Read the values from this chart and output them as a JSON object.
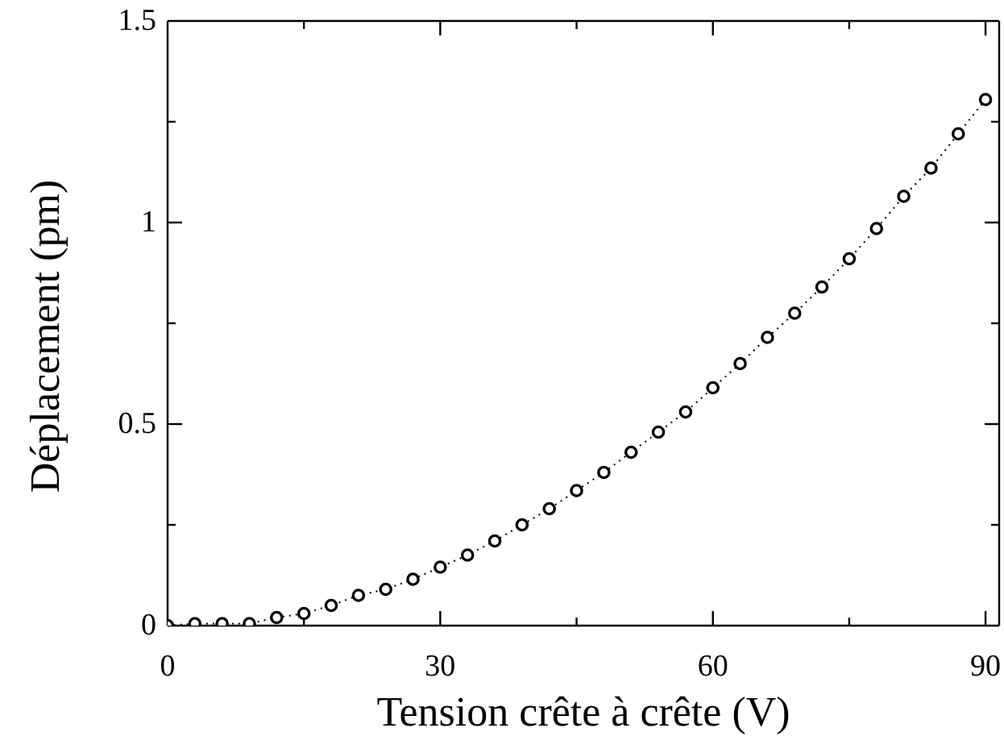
{
  "chart_data": {
    "type": "line",
    "xlabel": "Tension crête à crête (V)",
    "ylabel": "Déplacement (pm)",
    "x": [
      0,
      3,
      6,
      9,
      12,
      15,
      18,
      21,
      24,
      27,
      30,
      33,
      36,
      39,
      42,
      45,
      48,
      51,
      54,
      57,
      60,
      63,
      66,
      69,
      72,
      75,
      78,
      81,
      84,
      87,
      90
    ],
    "series": [
      {
        "color": "#000000",
        "values": [
          0,
          0.005,
          0.005,
          0.005,
          0.02,
          0.03,
          0.05,
          0.075,
          0.09,
          0.115,
          0.145,
          0.175,
          0.21,
          0.25,
          0.29,
          0.335,
          0.38,
          0.43,
          0.48,
          0.53,
          0.59,
          0.65,
          0.715,
          0.775,
          0.84,
          0.91,
          0.985,
          1.065,
          1.135,
          1.22,
          1.305
        ]
      }
    ],
    "xlim": [
      0,
      91.5
    ],
    "ylim": [
      0,
      1.5
    ],
    "xticks": [
      0,
      {
        "value": 15,
        "label": null
      },
      30,
      {
        "value": 45,
        "label": null
      },
      60,
      {
        "value": 75,
        "label": null
      },
      90
    ],
    "yticks": [
      0,
      {
        "value": 0.25,
        "label": null
      },
      0.5,
      {
        "value": 0.75,
        "label": null
      },
      1,
      {
        "value": 1.25,
        "label": null
      },
      1.5
    ],
    "marker": "circle",
    "line_style": "dotted"
  }
}
